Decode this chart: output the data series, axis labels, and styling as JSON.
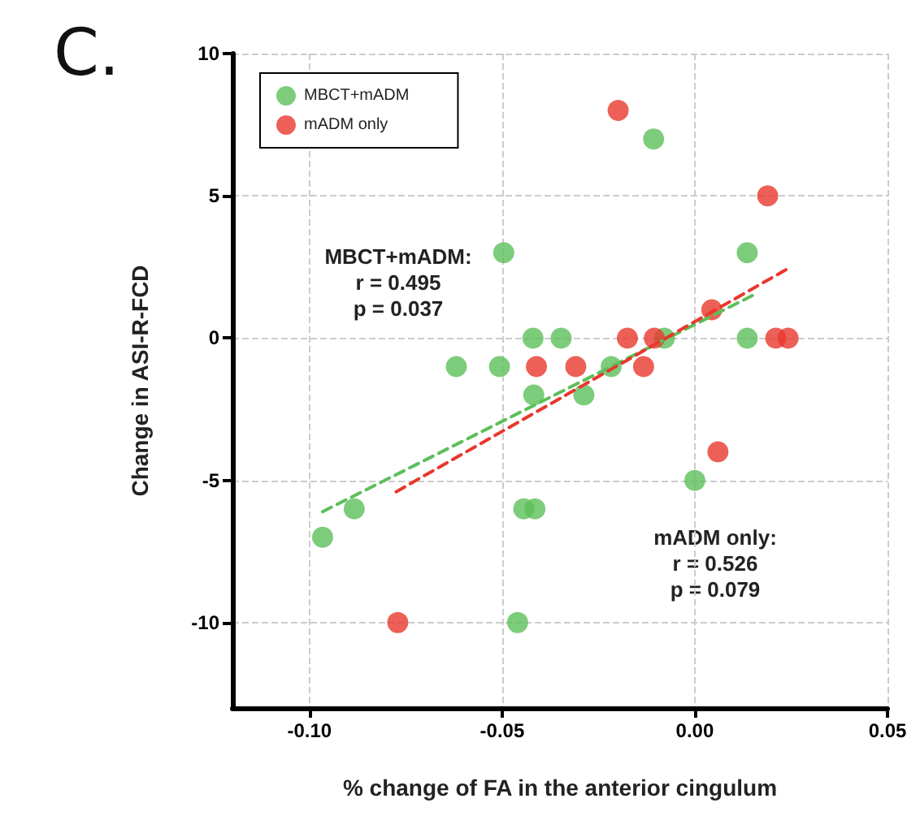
{
  "chart_data": {
    "type": "scatter",
    "title": "C.",
    "xlabel": "% change of FA in the anterior cingulum",
    "ylabel": "Change in ASI-R-FCD",
    "xlim": [
      -0.12,
      0.05
    ],
    "xticks": [
      {
        "value": -0.1,
        "label": "-0.10"
      },
      {
        "value": -0.05,
        "label": "-0.05"
      },
      {
        "value": 0,
        "label": "0.00"
      },
      {
        "value": 0.05,
        "label": "0.05"
      }
    ],
    "ylim": [
      -13,
      10
    ],
    "yticks": [
      -10,
      -5,
      0,
      5,
      10
    ],
    "grid": true,
    "legend": "top left",
    "marker": "circle",
    "series": [
      {
        "name": "MBCT+mADM",
        "color": "#5cbf5a",
        "x": [
          -0.0107,
          -0.0496,
          0.0136,
          -0.042,
          -0.0347,
          -0.0079,
          0.0136,
          -0.0619,
          -0.0507,
          -0.0217,
          -0.0418,
          -0.0288,
          -0.0884,
          -0.0444,
          -0.0415,
          -0.0966,
          0.0,
          -0.046
        ],
        "values": [
          7,
          3,
          3,
          0,
          0,
          0,
          0,
          -1,
          -1,
          -1,
          -2,
          -2,
          -6,
          -6,
          -6,
          -7,
          -5,
          -10
        ]
      },
      {
        "name": "mADM only",
        "color": "#e8382d",
        "x": [
          -0.0199,
          0.0189,
          0.0044,
          -0.0175,
          -0.0105,
          0.021,
          0.0242,
          -0.0411,
          -0.0309,
          -0.0133,
          0.006,
          -0.0771
        ],
        "values": [
          8,
          5,
          1,
          0,
          0,
          0,
          0,
          -1,
          -1,
          -1,
          -4,
          -10
        ]
      },
      {
        "type": "line",
        "color": "#5cbf5a",
        "line_style": "dashed",
        "marker": "none",
        "x": [
          -0.0966,
          0.015
        ],
        "values": [
          -6.1,
          1.5
        ]
      },
      {
        "type": "line",
        "color": "#e8382d",
        "line_style": "dashed",
        "marker": "none",
        "x": [
          -0.0775,
          0.0249
        ],
        "values": [
          -5.4,
          2.5
        ]
      }
    ],
    "annotations": [
      "MBCT+mADM:\nr = 0.495\np = 0.037",
      "mADM only:\nr = 0.526\np = 0.079"
    ]
  }
}
